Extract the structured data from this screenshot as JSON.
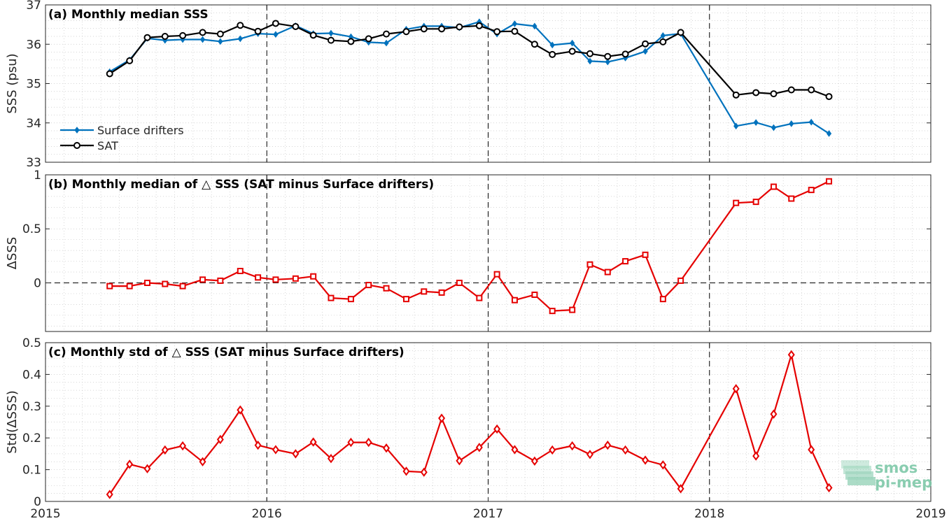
{
  "colors": {
    "drifters": "#0072BD",
    "sat": "#000000",
    "delta": "#E50000",
    "grid": "#c8c8c8",
    "axis": "#262626"
  },
  "logo": {
    "line1": "smos",
    "line2": "pi-mep",
    "color": "#7ec8a8"
  },
  "chart_data": [
    {
      "type": "line",
      "title": "(a) Monthly median SSS",
      "ylabel": "SSS (psu)",
      "xlim": [
        2015,
        2019
      ],
      "ylim": [
        33,
        37
      ],
      "yticks": [
        33,
        34,
        35,
        36,
        37
      ],
      "xticks": [
        2015,
        2016,
        2017,
        2018,
        2019
      ],
      "grid": true,
      "legend": "left",
      "x": [
        2015.29,
        2015.38,
        2015.46,
        2015.54,
        2015.62,
        2015.71,
        2015.79,
        2015.88,
        2015.96,
        2016.04,
        2016.13,
        2016.21,
        2016.29,
        2016.38,
        2016.46,
        2016.54,
        2016.63,
        2016.71,
        2016.79,
        2016.87,
        2016.96,
        2017.04,
        2017.12,
        2017.21,
        2017.29,
        2017.38,
        2017.46,
        2017.54,
        2017.62,
        2017.71,
        2017.79,
        2017.87,
        2018.12,
        2018.21,
        2018.29,
        2018.37,
        2018.46,
        2018.54
      ],
      "series": [
        {
          "name": "Surface drifters",
          "marker": "diamond",
          "values": [
            35.3,
            35.6,
            36.15,
            36.1,
            36.12,
            36.12,
            36.07,
            36.14,
            36.27,
            36.25,
            36.47,
            36.27,
            36.28,
            36.19,
            36.05,
            36.03,
            36.38,
            36.46,
            36.46,
            36.42,
            36.57,
            36.26,
            36.52,
            36.46,
            35.98,
            36.03,
            35.57,
            35.55,
            35.65,
            35.82,
            36.22,
            36.27,
            33.92,
            34.01,
            33.88,
            33.98,
            34.02,
            33.73
          ]
        },
        {
          "name": "SAT",
          "marker": "circle",
          "values": [
            35.25,
            35.58,
            36.17,
            36.2,
            36.22,
            36.3,
            36.26,
            36.48,
            36.33,
            36.53,
            36.45,
            36.23,
            36.1,
            36.07,
            36.14,
            36.26,
            36.32,
            36.39,
            36.39,
            36.44,
            36.47,
            36.32,
            36.33,
            36.0,
            35.74,
            35.82,
            35.76,
            35.69,
            35.75,
            36.01,
            36.06,
            36.3,
            34.71,
            34.77,
            34.74,
            34.84,
            34.84,
            34.67
          ]
        }
      ]
    },
    {
      "type": "line",
      "title": "(b) Monthly median of △ SSS (SAT minus Surface drifters)",
      "ylabel": "ΔSSS",
      "xlim": [
        2015,
        2019
      ],
      "ylim": [
        -0.45,
        1
      ],
      "yticks": [
        0,
        0.5,
        1
      ],
      "xticks": [
        2015,
        2016,
        2017,
        2018,
        2019
      ],
      "grid": true,
      "x": [
        2015.29,
        2015.38,
        2015.46,
        2015.54,
        2015.62,
        2015.71,
        2015.79,
        2015.88,
        2015.96,
        2016.04,
        2016.13,
        2016.21,
        2016.29,
        2016.38,
        2016.46,
        2016.54,
        2016.63,
        2016.71,
        2016.79,
        2016.87,
        2016.96,
        2017.04,
        2017.12,
        2017.21,
        2017.29,
        2017.38,
        2017.46,
        2017.54,
        2017.62,
        2017.71,
        2017.79,
        2017.87,
        2018.12,
        2018.21,
        2018.29,
        2018.37,
        2018.46,
        2018.54
      ],
      "series": [
        {
          "name": "ΔSSS",
          "marker": "square",
          "values": [
            -0.03,
            -0.03,
            0.0,
            -0.01,
            -0.03,
            0.03,
            0.02,
            0.11,
            0.05,
            0.03,
            0.04,
            0.06,
            -0.14,
            -0.15,
            -0.02,
            -0.05,
            -0.15,
            -0.08,
            -0.09,
            0.0,
            -0.14,
            0.08,
            -0.16,
            -0.11,
            -0.26,
            -0.25,
            0.17,
            0.1,
            0.2,
            0.26,
            -0.15,
            0.02,
            0.74,
            0.75,
            0.89,
            0.78,
            0.86,
            0.94
          ]
        }
      ]
    },
    {
      "type": "line",
      "title": "(c) Monthly std of △ SSS (SAT minus Surface drifters)",
      "ylabel": "Std(ΔSSS)",
      "xlim": [
        2015,
        2019
      ],
      "ylim": [
        0,
        0.5
      ],
      "yticks": [
        0,
        0.1,
        0.2,
        0.3,
        0.4,
        0.5
      ],
      "xticks": [
        2015,
        2016,
        2017,
        2018,
        2019
      ],
      "grid": true,
      "x": [
        2015.29,
        2015.38,
        2015.46,
        2015.54,
        2015.62,
        2015.71,
        2015.79,
        2015.88,
        2015.96,
        2016.04,
        2016.13,
        2016.21,
        2016.29,
        2016.38,
        2016.46,
        2016.54,
        2016.63,
        2016.71,
        2016.79,
        2016.87,
        2016.96,
        2017.04,
        2017.12,
        2017.21,
        2017.29,
        2017.38,
        2017.46,
        2017.54,
        2017.62,
        2017.71,
        2017.79,
        2017.87,
        2018.12,
        2018.21,
        2018.29,
        2018.37,
        2018.46,
        2018.54
      ],
      "series": [
        {
          "name": "Std(ΔSSS)",
          "marker": "diamond",
          "values": [
            0.022,
            0.117,
            0.103,
            0.162,
            0.175,
            0.125,
            0.195,
            0.288,
            0.177,
            0.163,
            0.15,
            0.187,
            0.135,
            0.186,
            0.186,
            0.168,
            0.095,
            0.092,
            0.262,
            0.128,
            0.17,
            0.228,
            0.163,
            0.127,
            0.162,
            0.175,
            0.148,
            0.177,
            0.162,
            0.13,
            0.115,
            0.04,
            0.355,
            0.143,
            0.275,
            0.462,
            0.163,
            0.043
          ]
        }
      ]
    }
  ]
}
